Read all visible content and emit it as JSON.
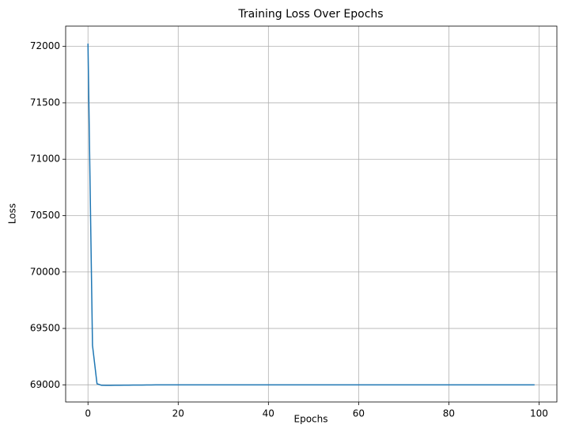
{
  "chart_data": {
    "type": "line",
    "title": "Training Loss Over Epochs",
    "x_label": "Epochs",
    "y_label": "Loss",
    "x": [
      0,
      1,
      2,
      3,
      4,
      5,
      6,
      7,
      8,
      9,
      10,
      11,
      12,
      13,
      14,
      15,
      16,
      17,
      18,
      19,
      20,
      21,
      22,
      23,
      24,
      25,
      26,
      27,
      28,
      29,
      30,
      31,
      32,
      33,
      34,
      35,
      36,
      37,
      38,
      39,
      40,
      41,
      42,
      43,
      44,
      45,
      46,
      47,
      48,
      49,
      50,
      51,
      52,
      53,
      54,
      55,
      56,
      57,
      58,
      59,
      60,
      61,
      62,
      63,
      64,
      65,
      66,
      67,
      68,
      69,
      70,
      71,
      72,
      73,
      74,
      75,
      76,
      77,
      78,
      79,
      80,
      81,
      82,
      83,
      84,
      85,
      86,
      87,
      88,
      89,
      90,
      91,
      92,
      93,
      94,
      95,
      96,
      97,
      98,
      99
    ],
    "series": [
      {
        "name": "Loss",
        "color": "#1f77b4",
        "values": [
          72025,
          69350,
          69010,
          68996,
          68995,
          68995,
          68996,
          68996,
          68997,
          68997,
          68998,
          68998,
          68998,
          68999,
          68999,
          69000,
          69000,
          69000,
          69000,
          69000,
          69000,
          69000,
          69000,
          69000,
          69000,
          69000,
          69000,
          69000,
          69000,
          69000,
          69000,
          69000,
          69000,
          69000,
          69000,
          69000,
          69000,
          69000,
          69000,
          69000,
          69000,
          69000,
          69000,
          69000,
          69000,
          69000,
          69000,
          69000,
          69000,
          69000,
          69000,
          69000,
          69000,
          69000,
          69000,
          69000,
          69000,
          69000,
          69000,
          69000,
          69000,
          69000,
          69000,
          69000,
          69000,
          69000,
          69000,
          69000,
          69000,
          69000,
          69000,
          69000,
          69000,
          69000,
          69000,
          69000,
          69000,
          69000,
          69000,
          69000,
          69000,
          69000,
          69000,
          69000,
          69000,
          69000,
          69000,
          69000,
          69000,
          69000,
          69000,
          69000,
          69000,
          69000,
          69000,
          69000,
          69000,
          69000,
          69000,
          69000
        ]
      }
    ],
    "xlim": [
      -4.95,
      103.95
    ],
    "xticks": [
      0,
      20,
      40,
      60,
      80,
      100
    ],
    "ylim": [
      68848,
      72180
    ],
    "yticks": [
      69000,
      69500,
      70000,
      70500,
      71000,
      71500,
      72000
    ],
    "grid": true
  }
}
